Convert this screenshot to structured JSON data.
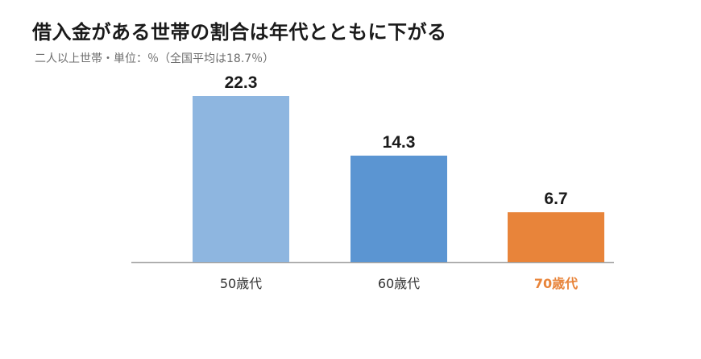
{
  "title": "借入金がある世帯の割合は年代とともに下がる",
  "subtitle": "二人以上世帯・単位：％（全国平均は18.7％）",
  "colors": {
    "bar_50s": "#8eb6e0",
    "bar_60s": "#5b95d2",
    "bar_70s": "#e8843a",
    "highlight_label": "#e8843a",
    "label": "#333333",
    "value": "#1a1a1a",
    "baseline": "#a6a6a6"
  },
  "chart_data": {
    "type": "bar",
    "title": "借入金がある世帯の割合は年代とともに下がる",
    "subtitle": "二人以上世帯・単位：％（全国平均は18.7％）",
    "categories": [
      "50歳代",
      "60歳代",
      "70歳代"
    ],
    "values": [
      22.3,
      14.3,
      6.7
    ],
    "value_labels": [
      "22.3",
      "14.3",
      "6.7"
    ],
    "xlabel": "",
    "ylabel": "",
    "ylim": [
      0,
      22.3
    ],
    "grid": false,
    "highlight_category": "70歳代"
  }
}
